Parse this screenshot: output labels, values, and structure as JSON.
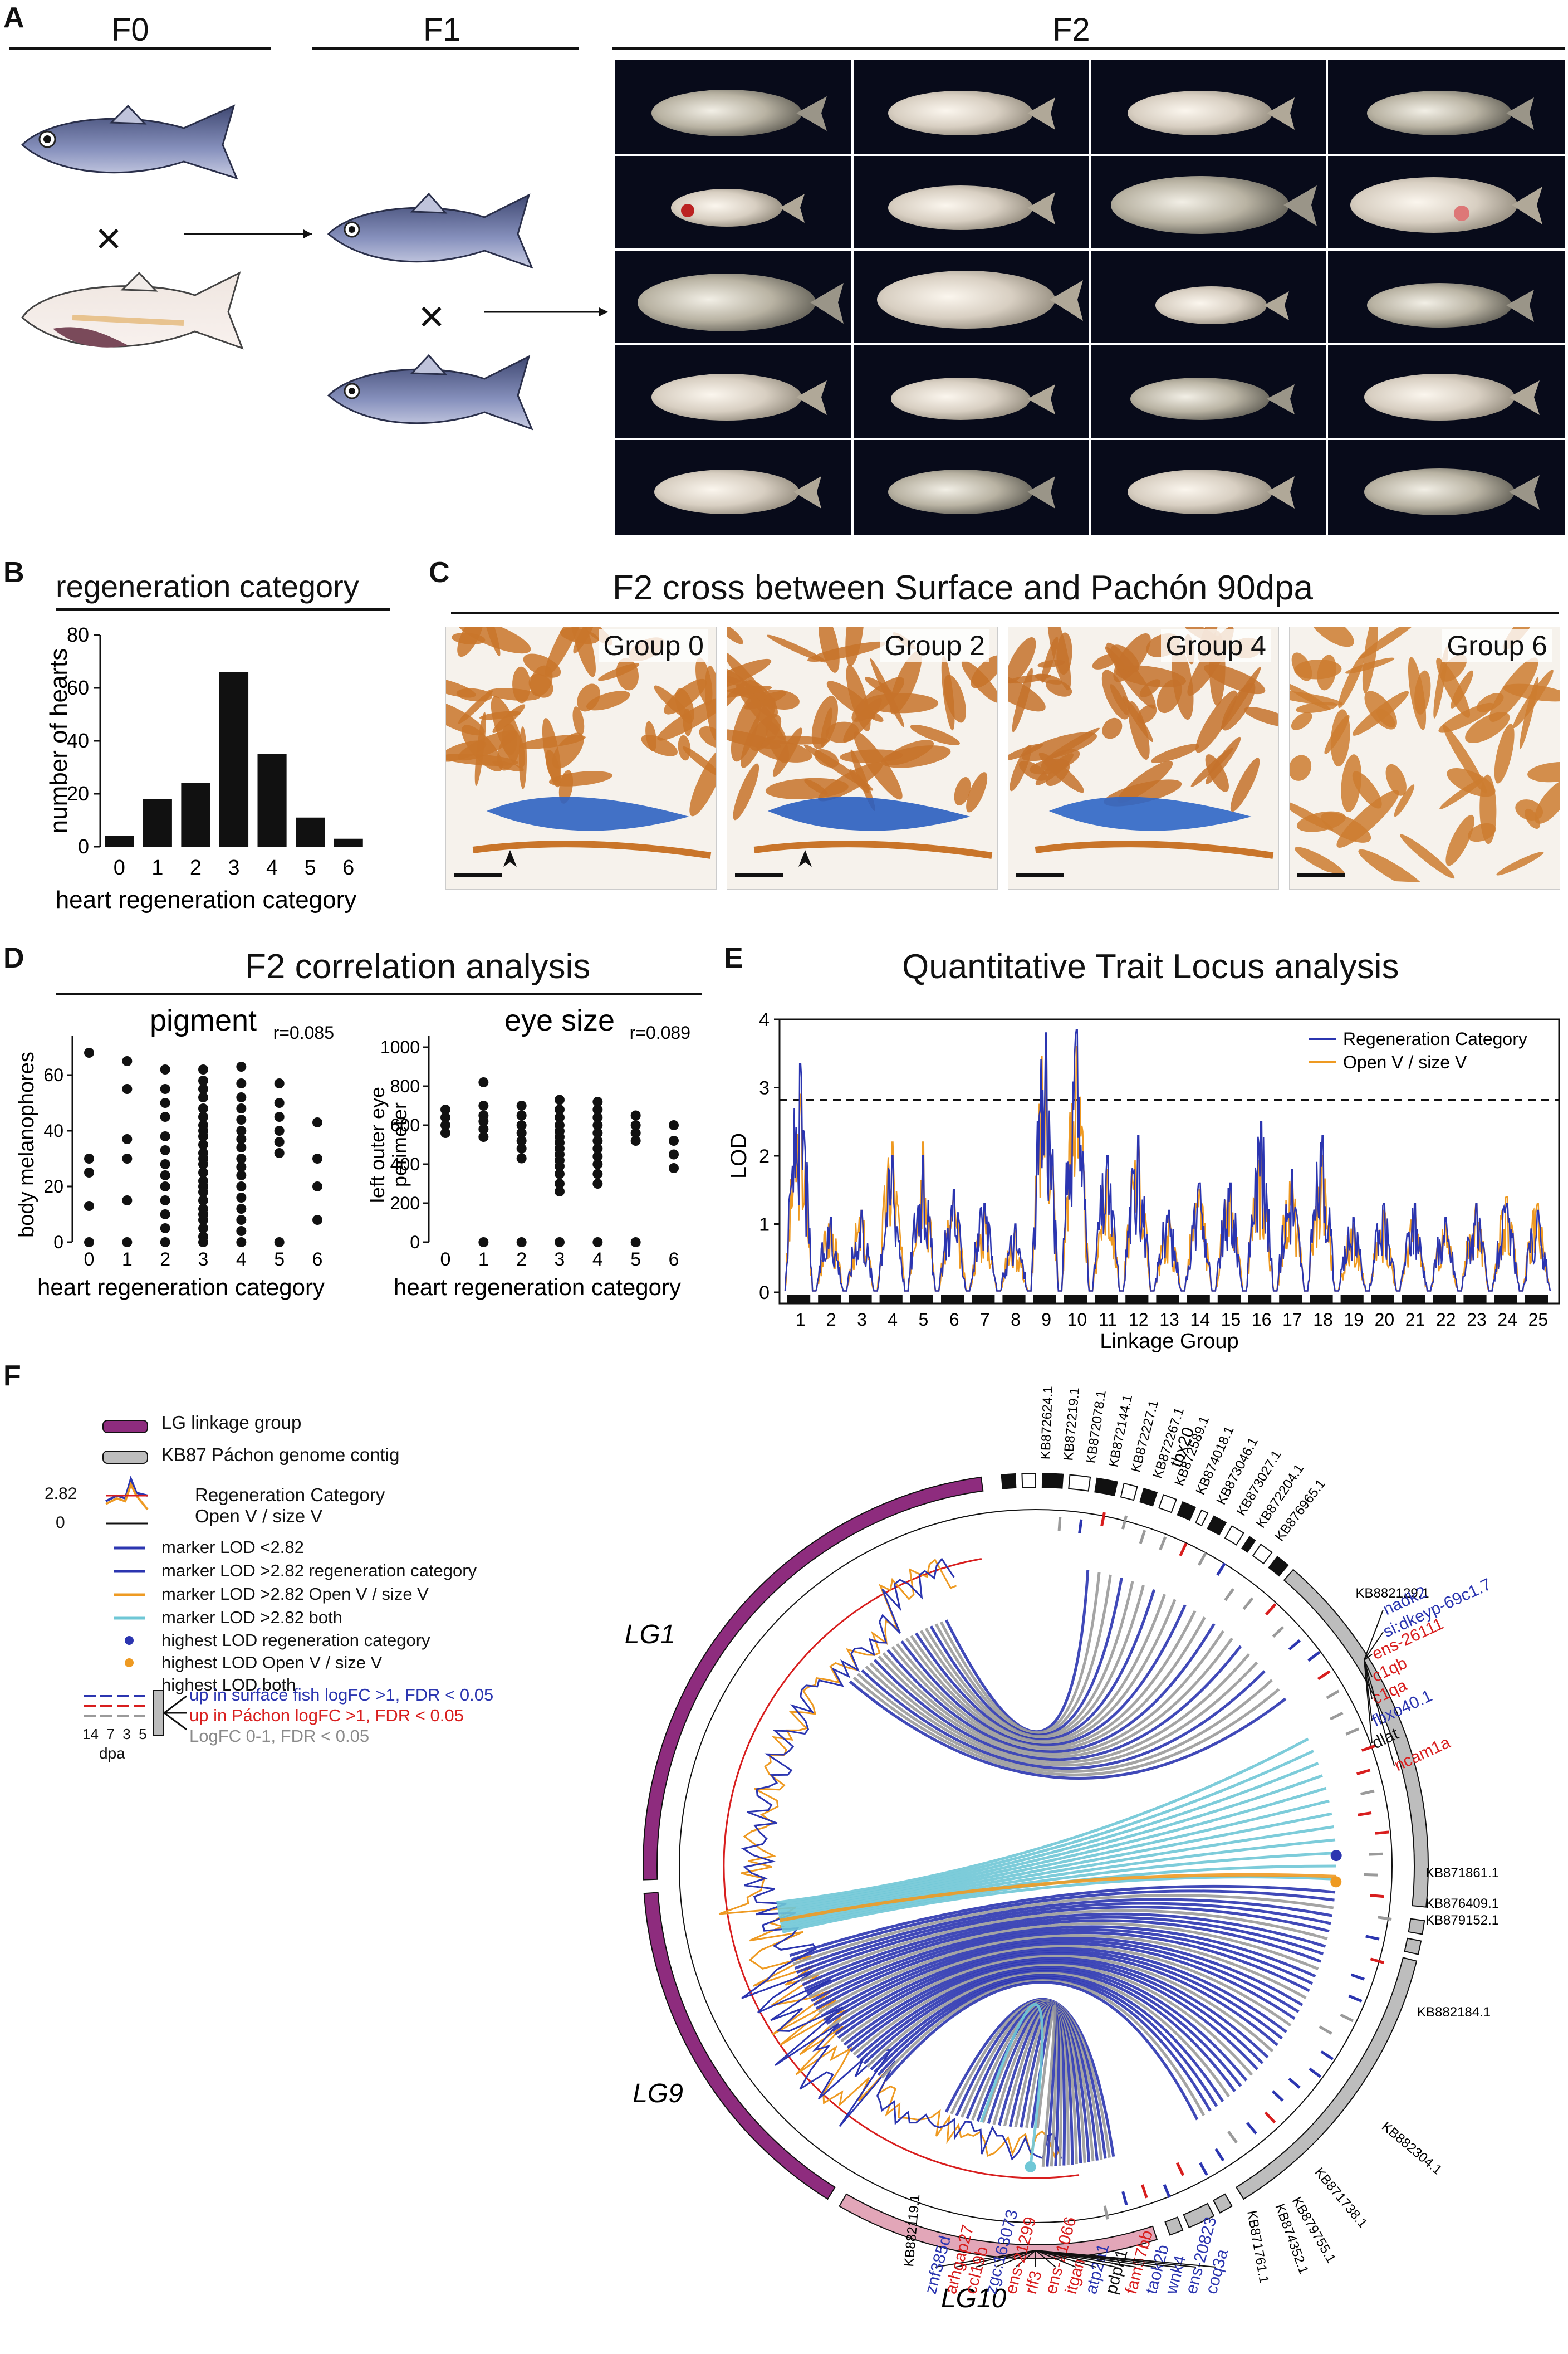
{
  "panel_a": {
    "label": "A",
    "f0": "F0",
    "f1": "F1",
    "f2": "F2",
    "cross1": "×",
    "cross2": "×"
  },
  "panel_b": {
    "label": "B",
    "title": "regeneration category",
    "chart_data": {
      "type": "bar",
      "categories": [
        "0",
        "1",
        "2",
        "3",
        "4",
        "5",
        "6"
      ],
      "values": [
        4,
        18,
        24,
        66,
        35,
        11,
        3
      ],
      "xlabel": "heart regeneration category",
      "ylabel": "number of hearts",
      "ylim": [
        0,
        80
      ],
      "yticks": [
        "0",
        "20",
        "40",
        "60",
        "80"
      ]
    }
  },
  "panel_c": {
    "label": "C",
    "title": "F2 cross between Surface and Pachón 90dpa",
    "groups": [
      "Group 0",
      "Group 2",
      "Group 4",
      "Group 6"
    ]
  },
  "panel_d": {
    "label": "D",
    "title": "F2 correlation analysis",
    "chart_data": [
      {
        "type": "scatter",
        "title": "pigment",
        "r": "r=0.085",
        "xlabel": "heart regeneration category",
        "ylabel": "body melanophores",
        "xticks": [
          "0",
          "1",
          "2",
          "3",
          "4",
          "5",
          "6"
        ],
        "yticks": [
          "0",
          "20",
          "40",
          "60"
        ],
        "ylim": [
          0,
          70
        ],
        "points": [
          [
            0,
            68
          ],
          [
            0,
            30
          ],
          [
            0,
            25
          ],
          [
            0,
            13
          ],
          [
            0,
            0
          ],
          [
            1,
            65
          ],
          [
            1,
            55
          ],
          [
            1,
            37
          ],
          [
            1,
            30
          ],
          [
            1,
            15
          ],
          [
            1,
            0
          ],
          [
            2,
            62
          ],
          [
            2,
            55
          ],
          [
            2,
            50
          ],
          [
            2,
            45
          ],
          [
            2,
            38
          ],
          [
            2,
            33
          ],
          [
            2,
            28
          ],
          [
            2,
            24
          ],
          [
            2,
            20
          ],
          [
            2,
            15
          ],
          [
            2,
            10
          ],
          [
            2,
            5
          ],
          [
            2,
            0
          ],
          [
            3,
            62
          ],
          [
            3,
            58
          ],
          [
            3,
            55
          ],
          [
            3,
            52
          ],
          [
            3,
            48
          ],
          [
            3,
            45
          ],
          [
            3,
            42
          ],
          [
            3,
            40
          ],
          [
            3,
            38
          ],
          [
            3,
            35
          ],
          [
            3,
            32
          ],
          [
            3,
            30
          ],
          [
            3,
            28
          ],
          [
            3,
            25
          ],
          [
            3,
            22
          ],
          [
            3,
            20
          ],
          [
            3,
            18
          ],
          [
            3,
            15
          ],
          [
            3,
            12
          ],
          [
            3,
            10
          ],
          [
            3,
            8
          ],
          [
            3,
            5
          ],
          [
            3,
            2
          ],
          [
            3,
            0
          ],
          [
            4,
            63
          ],
          [
            4,
            57
          ],
          [
            4,
            52
          ],
          [
            4,
            48
          ],
          [
            4,
            44
          ],
          [
            4,
            40
          ],
          [
            4,
            37
          ],
          [
            4,
            34
          ],
          [
            4,
            30
          ],
          [
            4,
            27
          ],
          [
            4,
            24
          ],
          [
            4,
            20
          ],
          [
            4,
            16
          ],
          [
            4,
            12
          ],
          [
            4,
            8
          ],
          [
            4,
            4
          ],
          [
            4,
            0
          ],
          [
            5,
            57
          ],
          [
            5,
            50
          ],
          [
            5,
            45
          ],
          [
            5,
            40
          ],
          [
            5,
            36
          ],
          [
            5,
            32
          ],
          [
            5,
            0
          ],
          [
            6,
            43
          ],
          [
            6,
            30
          ],
          [
            6,
            20
          ],
          [
            6,
            8
          ]
        ]
      },
      {
        "type": "scatter",
        "title": "eye size",
        "r": "r=0.089",
        "xlabel": "heart regeneration category",
        "ylabel": "left outer eye perimeter",
        "xticks": [
          "0",
          "1",
          "2",
          "3",
          "4",
          "5",
          "6"
        ],
        "yticks": [
          "0",
          "200",
          "400",
          "600",
          "800",
          "1000"
        ],
        "ylim": [
          0,
          1000
        ],
        "points": [
          [
            0,
            680
          ],
          [
            0,
            640
          ],
          [
            0,
            600
          ],
          [
            0,
            560
          ],
          [
            1,
            820
          ],
          [
            1,
            700
          ],
          [
            1,
            650
          ],
          [
            1,
            620
          ],
          [
            1,
            580
          ],
          [
            1,
            540
          ],
          [
            1,
            0
          ],
          [
            2,
            700
          ],
          [
            2,
            650
          ],
          [
            2,
            600
          ],
          [
            2,
            560
          ],
          [
            2,
            520
          ],
          [
            2,
            480
          ],
          [
            2,
            430
          ],
          [
            2,
            0
          ],
          [
            3,
            730
          ],
          [
            3,
            680
          ],
          [
            3,
            640
          ],
          [
            3,
            600
          ],
          [
            3,
            570
          ],
          [
            3,
            540
          ],
          [
            3,
            510
          ],
          [
            3,
            480
          ],
          [
            3,
            450
          ],
          [
            3,
            420
          ],
          [
            3,
            390
          ],
          [
            3,
            350
          ],
          [
            3,
            300
          ],
          [
            3,
            260
          ],
          [
            3,
            0
          ],
          [
            4,
            720
          ],
          [
            4,
            680
          ],
          [
            4,
            640
          ],
          [
            4,
            600
          ],
          [
            4,
            560
          ],
          [
            4,
            520
          ],
          [
            4,
            480
          ],
          [
            4,
            440
          ],
          [
            4,
            400
          ],
          [
            4,
            350
          ],
          [
            4,
            300
          ],
          [
            4,
            0
          ],
          [
            5,
            650
          ],
          [
            5,
            600
          ],
          [
            5,
            560
          ],
          [
            5,
            520
          ],
          [
            5,
            0
          ],
          [
            6,
            600
          ],
          [
            6,
            520
          ],
          [
            6,
            450
          ],
          [
            6,
            380
          ]
        ]
      }
    ]
  },
  "panel_e": {
    "label": "E",
    "title": "Quantitative Trait Locus analysis",
    "chart_data": {
      "type": "line",
      "xlabel": "Linkage Group",
      "ylabel": "LOD",
      "ylim": [
        0,
        4
      ],
      "yticks": [
        "0",
        "1",
        "2",
        "3",
        "4"
      ],
      "threshold": 2.82,
      "groups": [
        "1",
        "2",
        "3",
        "4",
        "5",
        "6",
        "7",
        "8",
        "9",
        "10",
        "11",
        "12",
        "13",
        "14",
        "15",
        "16",
        "17",
        "18",
        "19",
        "20",
        "21",
        "22",
        "23",
        "24",
        "25"
      ],
      "series": [
        {
          "name": "Regeneration Category",
          "color": "#2b35b0",
          "peaks": [
            3.35,
            1.1,
            1.2,
            2.0,
            2.0,
            1.5,
            1.3,
            1.0,
            3.8,
            3.85,
            2.0,
            2.3,
            1.2,
            1.6,
            1.6,
            2.5,
            1.8,
            2.3,
            1.1,
            1.3,
            1.3,
            1.1,
            1.3,
            1.3,
            1.2
          ]
        },
        {
          "name": "Open V / size V",
          "color": "#ee9a22",
          "peaks": [
            2.9,
            1.1,
            1.2,
            2.2,
            2.2,
            1.4,
            1.2,
            0.9,
            3.75,
            3.6,
            1.8,
            2.2,
            1.1,
            1.5,
            1.5,
            2.1,
            1.7,
            2.0,
            1.0,
            1.2,
            1.2,
            1.0,
            1.3,
            1.4,
            1.3
          ]
        }
      ]
    }
  },
  "panel_f": {
    "label": "F",
    "legend": {
      "lg": "LG linkage group",
      "kb": "KB87 Páchon genome contig",
      "threshold_value": "2.82",
      "zero_value": "0",
      "regen": "Regeneration Category",
      "open": "Open V / size V",
      "marker_low": "marker LOD <2.82",
      "marker_regen": "marker LOD >2.82 regeneration category",
      "marker_open": "marker LOD >2.82 Open V / size V",
      "marker_both": "marker LOD >2.82 both",
      "highest_regen": "highest LOD regeneration category",
      "highest_open": "highest LOD Open V / size V",
      "highest_both": "highest LOD both",
      "up_surface": "up in surface fish logFC >1, FDR < 0.05",
      "up_pachon": "up in Páchon logFC >1, FDR < 0.05",
      "logfc": "LogFC 0-1, FDR < 0.05",
      "dpa_values": "14  7  3  5",
      "dpa": "dpa"
    },
    "lg_labels": [
      "LG1",
      "LG9",
      "LG10"
    ],
    "colors": {
      "regen": "#2b35b0",
      "open": "#ee9a22",
      "both": "#6fc7d6",
      "low": "#9a9a9a",
      "lg": "#8e2c7e",
      "lg10": "#e2a6b8",
      "contig": "#bdbdbd",
      "up_surface": "#2b35b0",
      "up_pachon": "#d81e1e"
    },
    "contigs_top": [
      "KB872624.1",
      "KB872219.1",
      "KB872078.1",
      "KB872144.1",
      "KB872227.1",
      "KB872267.1",
      "KB872589.1",
      "KB874018.1",
      "KB873046.1",
      "KB873027.1",
      "KB872204.1",
      "KB876965.1"
    ],
    "tbx20": "tbx20",
    "contig_right_top": "KB882129.1",
    "genes_right": [
      {
        "name": "nadk2",
        "color": "#2b35b0"
      },
      {
        "name": "si:dkeyp-69c1.7",
        "color": "#2b35b0"
      },
      {
        "name": "ens-26111",
        "color": "#d81e1e"
      },
      {
        "name": "c1qb",
        "color": "#d81e1e"
      },
      {
        "name": "c1qa",
        "color": "#d81e1e"
      },
      {
        "name": "fbxo40.1",
        "color": "#2b35b0"
      },
      {
        "name": "dlat",
        "color": "#111111"
      },
      {
        "name": "ncam1a",
        "color": "#d81e1e"
      }
    ],
    "contigs_right": [
      "KB871861.1",
      "KB876409.1",
      "KB879152.1",
      "KB882184.1",
      "KB882304.1",
      "KB871738.1",
      "KB879755.1",
      "KB874352.1",
      "KB871761.1"
    ],
    "contig_bottom": "KB882119.1",
    "genes_bottom": [
      {
        "name": "znf385d",
        "color": "#2b35b0"
      },
      {
        "name": "arhgap27",
        "color": "#d81e1e"
      },
      {
        "name": "ccl19b",
        "color": "#d81e1e"
      },
      {
        "name": "zgc:163073",
        "color": "#2b35b0"
      },
      {
        "name": "ens-21299",
        "color": "#d81e1e"
      },
      {
        "name": "rlf3",
        "color": "#d81e1e"
      },
      {
        "name": "ens-21066",
        "color": "#d81e1e"
      },
      {
        "name": "itgam",
        "color": "#d81e1e"
      },
      {
        "name": "atp2a1",
        "color": "#2b35b0"
      },
      {
        "name": "pdpk1",
        "color": "#111111"
      },
      {
        "name": "fam57bb",
        "color": "#d81e1e"
      },
      {
        "name": "taok2b",
        "color": "#2b35b0"
      },
      {
        "name": "wnk4",
        "color": "#2b35b0"
      },
      {
        "name": "ens-20823",
        "color": "#2b35b0"
      },
      {
        "name": "coq3a",
        "color": "#2b35b0"
      }
    ]
  }
}
